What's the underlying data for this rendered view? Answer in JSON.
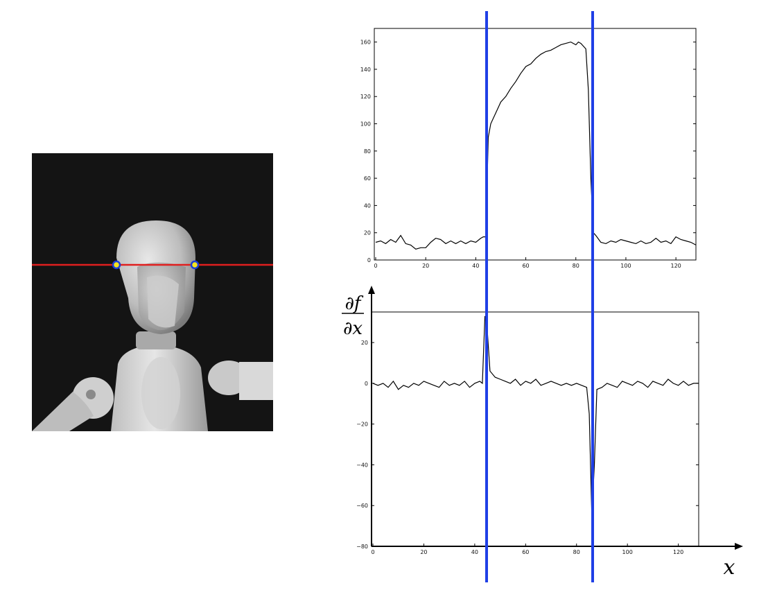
{
  "figure": {
    "photo": {
      "description_name": "wooden-mannequin-photo",
      "scanline_color": "#e01f1f",
      "edge_marker_fill": "#f5e51e",
      "edge_marker_stroke": "#1d3fd6"
    },
    "derivative_label": {
      "numerator": "∂f",
      "denominator": "∂x"
    },
    "x_label": "x",
    "edge_line_color": "#1f3fe6",
    "edge_positions_x": [
      45,
      87
    ]
  },
  "chart_data": [
    {
      "type": "line",
      "name": "intensity-profile",
      "title": "",
      "xlabel": "",
      "ylabel": "",
      "xlim": [
        0,
        128
      ],
      "ylim": [
        0,
        170
      ],
      "xticks": [
        0,
        20,
        40,
        60,
        80,
        100,
        120
      ],
      "yticks": [
        0,
        20,
        40,
        60,
        80,
        100,
        120,
        140,
        160
      ],
      "grid": false,
      "series": [
        {
          "x": [
            0,
            2,
            4,
            6,
            8,
            10,
            12,
            14,
            16,
            18,
            20,
            22,
            24,
            26,
            28,
            30,
            32,
            34,
            36,
            38,
            40,
            42,
            43,
            44,
            45,
            46,
            48,
            50,
            52,
            54,
            56,
            58,
            60,
            62,
            64,
            66,
            68,
            70,
            72,
            74,
            76,
            78,
            80,
            81,
            82,
            84,
            85,
            86,
            87,
            88,
            90,
            92,
            94,
            96,
            98,
            100,
            102,
            104,
            106,
            108,
            110,
            112,
            114,
            116,
            118,
            120,
            122,
            124,
            126,
            128
          ],
          "y": [
            13,
            14,
            12,
            15,
            13,
            18,
            12,
            11,
            8,
            9,
            9,
            13,
            16,
            15,
            12,
            14,
            12,
            14,
            12,
            14,
            13,
            16,
            17,
            17,
            90,
            100,
            108,
            116,
            120,
            126,
            131,
            137,
            142,
            144,
            148,
            151,
            153,
            154,
            156,
            158,
            159,
            160,
            158,
            160,
            159,
            155,
            125,
            60,
            20,
            18,
            13,
            12,
            14,
            13,
            15,
            14,
            13,
            12,
            14,
            12,
            13,
            16,
            13,
            14,
            12,
            17,
            15,
            14,
            13,
            11
          ]
        }
      ]
    },
    {
      "type": "line",
      "name": "derivative-profile",
      "title": "",
      "xlabel": "x",
      "ylabel": "∂f/∂x",
      "xlim": [
        0,
        128
      ],
      "ylim": [
        -80,
        35
      ],
      "xticks": [
        0,
        20,
        40,
        60,
        80,
        100,
        120
      ],
      "yticks": [
        -80,
        -60,
        -40,
        -20,
        0,
        20
      ],
      "grid": false,
      "series": [
        {
          "x": [
            0,
            2,
            4,
            6,
            8,
            10,
            12,
            14,
            16,
            18,
            20,
            22,
            24,
            26,
            28,
            30,
            32,
            34,
            36,
            38,
            40,
            42,
            43,
            44,
            45,
            46,
            48,
            50,
            52,
            54,
            56,
            58,
            60,
            62,
            64,
            66,
            68,
            70,
            72,
            74,
            76,
            78,
            80,
            82,
            84,
            85,
            86,
            87,
            88,
            90,
            92,
            94,
            96,
            98,
            100,
            102,
            104,
            106,
            108,
            110,
            112,
            114,
            116,
            118,
            120,
            122,
            124,
            126,
            128
          ],
          "y": [
            0,
            -1,
            0,
            -2,
            1,
            -3,
            -1,
            -2,
            0,
            -1,
            1,
            0,
            -1,
            -2,
            1,
            -1,
            0,
            -1,
            1,
            -2,
            0,
            1,
            0,
            33,
            25,
            6,
            3,
            2,
            1,
            0,
            2,
            -1,
            1,
            0,
            2,
            -1,
            0,
            1,
            0,
            -1,
            0,
            -1,
            0,
            -1,
            -2,
            -15,
            -65,
            -40,
            -3,
            -2,
            0,
            -1,
            -2,
            1,
            0,
            -1,
            1,
            0,
            -2,
            1,
            0,
            -1,
            2,
            0,
            -1,
            1,
            -1,
            0,
            0
          ]
        }
      ]
    }
  ]
}
